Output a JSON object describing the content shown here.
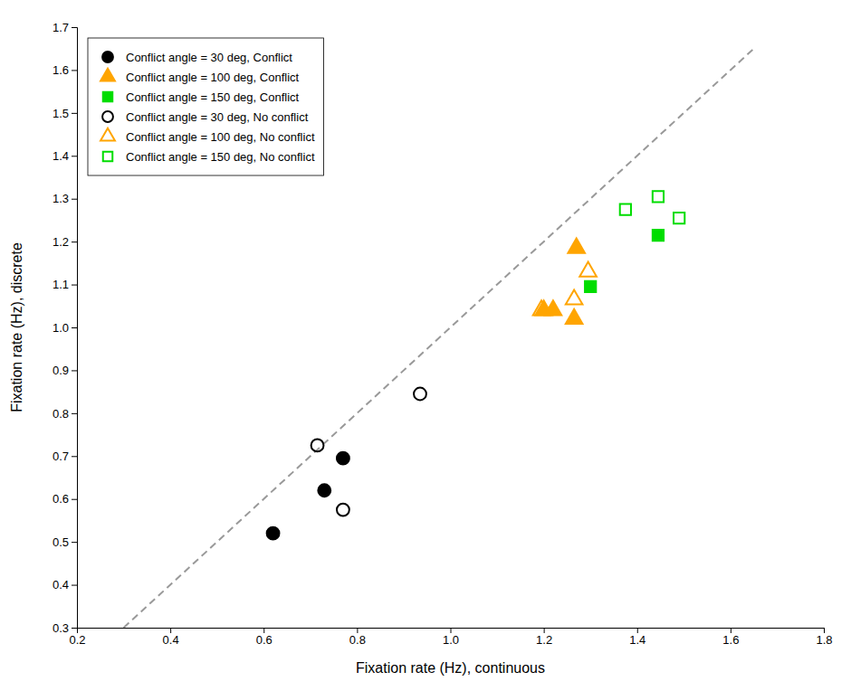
{
  "chart_data": {
    "type": "scatter",
    "xlabel": "Fixation rate (Hz), continuous",
    "ylabel": "Fixation rate (Hz), discrete",
    "xlim": [
      0.2,
      1.8
    ],
    "ylim": [
      0.3,
      1.7
    ],
    "xticks": [
      0.2,
      0.4,
      0.6,
      0.8,
      {
        "value": 1,
        "label": "1.0"
      },
      1.2,
      1.4,
      1.6,
      1.8
    ],
    "yticks": [
      0.3,
      0.4,
      0.5,
      0.6,
      0.7,
      0.8,
      0.9,
      {
        "value": 1,
        "label": "1.0"
      },
      1.1,
      1.2,
      1.3,
      1.4,
      1.5,
      1.6,
      1.7
    ],
    "grid": false,
    "legend": "upper left",
    "series": [
      {
        "name": "Conflict angle = 30 deg, Conflict",
        "marker": "circle",
        "color": "#000000",
        "x": [
          0.62,
          0.73,
          0.77
        ],
        "values": [
          0.52,
          0.62,
          0.695
        ]
      },
      {
        "name": "Conflict angle = 100 deg, Conflict",
        "marker": "triangle-up",
        "color": "#FFA500",
        "x": [
          1.2,
          1.22,
          1.265,
          1.27
        ],
        "values": [
          1.04,
          1.04,
          1.02,
          1.185
        ]
      },
      {
        "name": "Conflict angle = 150 deg, Conflict",
        "marker": "square",
        "color": "#00DD00",
        "x": [
          1.3,
          1.445
        ],
        "values": [
          1.095,
          1.215
        ]
      },
      {
        "name": "Conflict angle = 30 deg, No conflict",
        "marker": "circle-open",
        "color": "#000000",
        "x": [
          0.715,
          0.77,
          0.935
        ],
        "values": [
          0.725,
          0.575,
          0.845
        ]
      },
      {
        "name": "Conflict angle = 100 deg, No conflict",
        "marker": "triangle-up-open",
        "color": "#FFA500",
        "x": [
          1.195,
          1.265,
          1.295
        ],
        "values": [
          1.04,
          1.065,
          1.13
        ]
      },
      {
        "name": "Conflict angle = 150 deg, No conflict",
        "marker": "square-open",
        "color": "#00DD00",
        "x": [
          1.375,
          1.445,
          1.49
        ],
        "values": [
          1.275,
          1.305,
          1.255
        ]
      },
      {
        "type": "line",
        "line_style": "dashed",
        "color": "#999999",
        "x": [
          0.3,
          1.65
        ],
        "values": [
          0.3,
          1.65
        ]
      }
    ]
  }
}
